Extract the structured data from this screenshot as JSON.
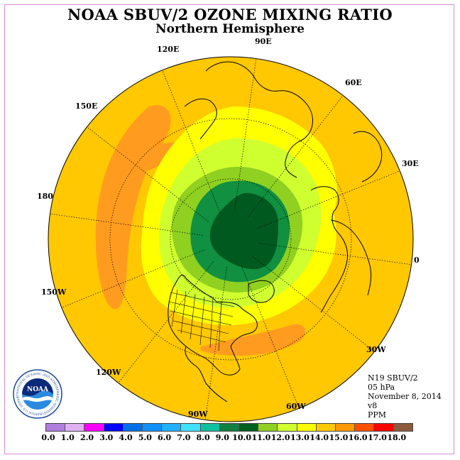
{
  "header": {
    "title": "NOAA SBUV/2 OZONE MIXING RATIO",
    "subtitle": "Northern Hemisphere"
  },
  "longitude_labels": {
    "lon_90e": "90E",
    "lon_120e": "120E",
    "lon_60e": "60E",
    "lon_150e": "150E",
    "lon_30e": "30E",
    "lon_180": "180",
    "lon_0": "0",
    "lon_150w": "150W",
    "lon_30w": "30W",
    "lon_120w": "120W",
    "lon_60w": "60W",
    "lon_90w": "90W"
  },
  "info": {
    "satellite": "N19 SBUV/2",
    "pressure": "05 hPa",
    "date": "November 8, 2014",
    "version": "v8",
    "units": "PPM"
  },
  "logo": {
    "name": "NOAA",
    "ring_text": "NATIONAL OCEANIC AND ATMOSPHERIC ADMINISTRATION U.S. DEPARTMENT OF COMMERCE"
  },
  "colorbar": {
    "colors": [
      "#b07fe0",
      "#e0b0f0",
      "#ff00ff",
      "#0000ff",
      "#0070e8",
      "#1090ff",
      "#20b0ff",
      "#40e0ff",
      "#10c0a0",
      "#108040",
      "#006020",
      "#90d020",
      "#d0ff30",
      "#ffff00",
      "#ffc800",
      "#ff9800",
      "#ff5000",
      "#ff0000",
      "#8b5a3c"
    ],
    "ticks": [
      "0.0",
      "1.0",
      "2.0",
      "3.0",
      "4.0",
      "5.0",
      "6.0",
      "7.0",
      "8.0",
      "9.0",
      "10.0",
      "11.0",
      "12.0",
      "13.0",
      "14.0",
      "15.0",
      "16.0",
      "17.0",
      "18.0"
    ]
  },
  "field_colors": {
    "base": "#ffc800",
    "high": "#ff9c20",
    "yellow": "#ffff00",
    "light_green": "#d0ff30",
    "mid_green": "#90d020",
    "green": "#109040",
    "dark_green": "#005a20"
  }
}
